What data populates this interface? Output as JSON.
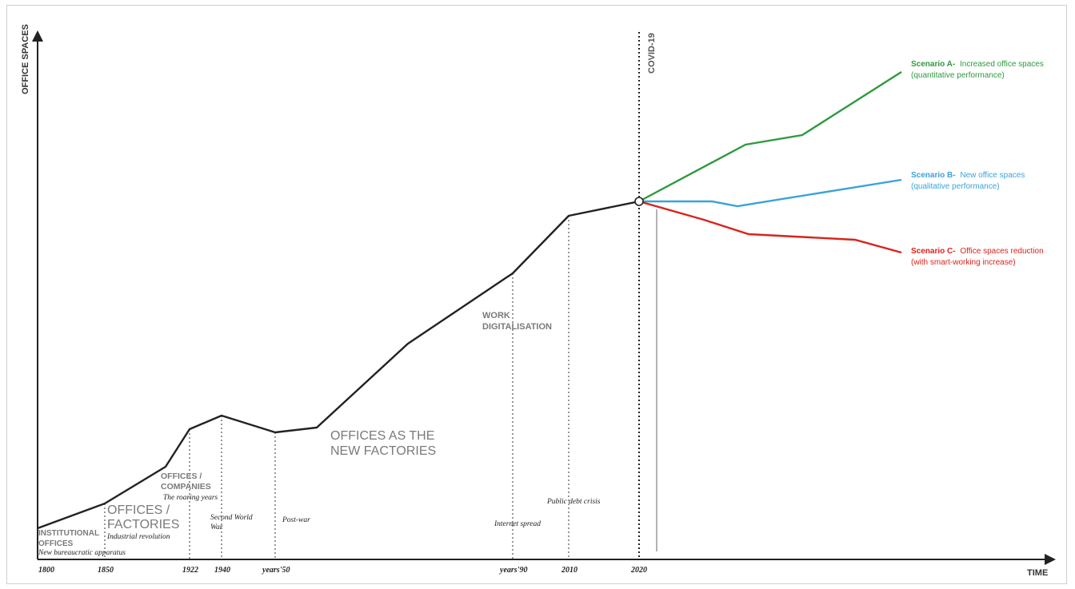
{
  "axes": {
    "y_label": "OFFICE SPACES",
    "x_label": "TIME"
  },
  "covid_label": "COVID-19",
  "ticks": [
    "1800",
    "1850",
    "1922",
    "1940",
    "years'50",
    "years'90",
    "2010",
    "2020"
  ],
  "eras": {
    "institutional": [
      "INSTITUTIONAL",
      "OFFICES"
    ],
    "factories": [
      "OFFICES /",
      "FACTORIES"
    ],
    "companies": [
      "OFFICES /",
      "COMPANIES"
    ],
    "new_factories": [
      "OFFICES AS THE",
      "NEW FACTORIES"
    ],
    "digitalisation": [
      "WORK",
      "DIGITALISATION"
    ]
  },
  "events": {
    "bureaucratic": "New bureaucratic apparatus",
    "industrial": "Industrial revolution",
    "roaring": "The roaring years",
    "ww2": [
      "Second World",
      "War"
    ],
    "postwar": "Post-war",
    "internet": "Internet spread",
    "debt": "Public debt crisis"
  },
  "scenarios": {
    "a": {
      "title": "Scenario A-",
      "desc1": "Increased office spaces",
      "desc2": "(quantitative performance)",
      "color": "#2e9a3e"
    },
    "b": {
      "title": "Scenario B-",
      "desc1": "New office spaces",
      "desc2": "(qualitative performance)",
      "color": "#3aa3d8"
    },
    "c": {
      "title": "Scenario C-",
      "desc1": "Office spaces reduction",
      "desc2": "(with smart-working increase)",
      "color": "#d9241c"
    }
  },
  "colors": {
    "main_line": "#222222",
    "covid_line": "#222222",
    "text_grey": "#7a7a7a"
  }
}
